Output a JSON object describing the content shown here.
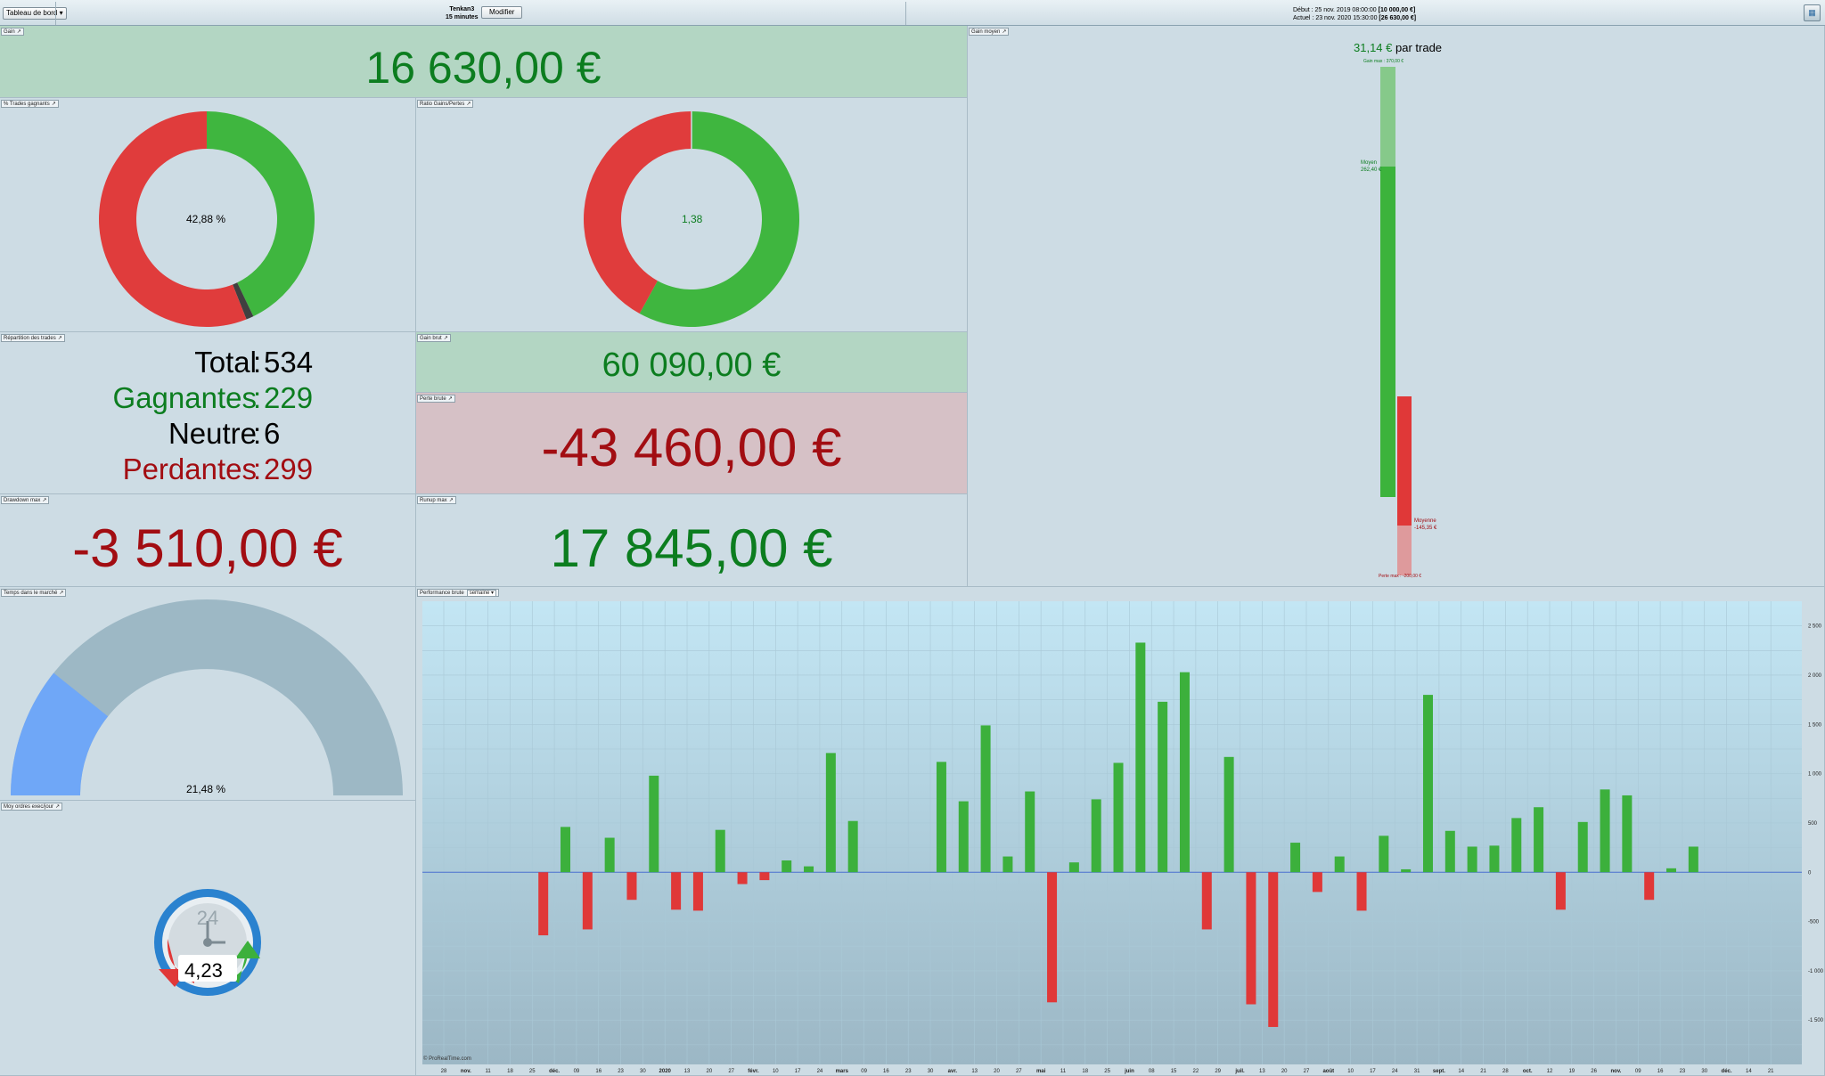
{
  "topbar": {
    "dashboard_dropdown": "Tableau de bord",
    "strategy_name": "Tenkan3",
    "timeframe": "15 minutes",
    "modify_button": "Modifier",
    "start_label": "Début :",
    "start_date": "25 nov. 2019 08:00:00",
    "start_capital": "[10 000,00 €]",
    "current_label": "Actuel :",
    "current_date": "23 nov. 2020 15:30:00",
    "current_capital": "[26 630,00 €]"
  },
  "gain": {
    "title": "Gain",
    "value": "16 630,00 €"
  },
  "win_pct": {
    "title": "% Trades gagnants",
    "label": "42,88 %",
    "win": 42.88,
    "neutral": 1.12,
    "loss": 56.0,
    "colors": {
      "win": "#3fb63f",
      "neutral": "#404040",
      "loss": "#e03c3c"
    }
  },
  "ratio": {
    "title": "Ratio Gains/Pertes",
    "label": "1,38",
    "win_fraction": 0.58
  },
  "avg_gain": {
    "title": "Gain moyen",
    "per_trade_value": "31,14 €",
    "per_trade_suffix": "par trade",
    "gain_max_label": "Gain max : 370,00 €",
    "avg_win_label": "Moyen",
    "avg_win_value": "262,40 €",
    "avg_loss_label": "Moyenne",
    "avg_loss_value": "-145,35 €",
    "loss_max_label": "Perte max : -200,00 €",
    "gain_max": 370.0,
    "avg_win": 262.4,
    "avg_loss": -145.35,
    "loss_max": -200.0
  },
  "repartition": {
    "title": "Répartition des trades",
    "rows": [
      {
        "label": "Total",
        "value": "534"
      },
      {
        "label": "Gagnantes",
        "value": "229"
      },
      {
        "label": "Neutre",
        "value": "6"
      },
      {
        "label": "Perdantes",
        "value": "299"
      }
    ],
    "separator": ":"
  },
  "gain_brut": {
    "title": "Gain brut",
    "value": "60 090,00 €"
  },
  "perte_brute": {
    "title": "Perte brute",
    "value": "-43 460,00 €"
  },
  "drawdown": {
    "title": "Drawdown max",
    "value": "-3 510,00 €"
  },
  "runup": {
    "title": "Runup max",
    "value": "17 845,00 €"
  },
  "market_time": {
    "title": "Temps dans le marché",
    "label": "21,48 %",
    "fraction": 0.2148
  },
  "orders": {
    "title": "Moy ordres exec/jour",
    "label": "4,23",
    "clock_number": "24"
  },
  "performance": {
    "title": "Performance brute",
    "period_select": "semaine",
    "credit": "© ProRealTime.com"
  },
  "chart_data": {
    "type": "bar",
    "title": "Performance brute",
    "ylim": [
      -1950,
      2750
    ],
    "yticks": [
      2500,
      2000,
      1500,
      1000,
      500,
      0,
      -500,
      -1000,
      -1500
    ],
    "ytick_labels": [
      "2 500",
      "2 000",
      "1 500",
      "1 000",
      "500",
      "0",
      "-500",
      "-1 000",
      "-1 500"
    ],
    "colors": {
      "positive": "#3cb03c",
      "negative": "#e03838",
      "zero_line": "#4a6fd0"
    },
    "x_labels": [
      {
        "t": "28",
        "b": false
      },
      {
        "t": "nov.",
        "b": true
      },
      {
        "t": "11",
        "b": false
      },
      {
        "t": "18",
        "b": false
      },
      {
        "t": "25",
        "b": false
      },
      {
        "t": "déc.",
        "b": true
      },
      {
        "t": "09",
        "b": false
      },
      {
        "t": "16",
        "b": false
      },
      {
        "t": "23",
        "b": false
      },
      {
        "t": "30",
        "b": false
      },
      {
        "t": "2020",
        "b": true
      },
      {
        "t": "13",
        "b": false
      },
      {
        "t": "20",
        "b": false
      },
      {
        "t": "27",
        "b": false
      },
      {
        "t": "févr.",
        "b": true
      },
      {
        "t": "10",
        "b": false
      },
      {
        "t": "17",
        "b": false
      },
      {
        "t": "24",
        "b": false
      },
      {
        "t": "mars",
        "b": true
      },
      {
        "t": "09",
        "b": false
      },
      {
        "t": "16",
        "b": false
      },
      {
        "t": "23",
        "b": false
      },
      {
        "t": "30",
        "b": false
      },
      {
        "t": "avr.",
        "b": true
      },
      {
        "t": "13",
        "b": false
      },
      {
        "t": "20",
        "b": false
      },
      {
        "t": "27",
        "b": false
      },
      {
        "t": "mai",
        "b": true
      },
      {
        "t": "11",
        "b": false
      },
      {
        "t": "18",
        "b": false
      },
      {
        "t": "25",
        "b": false
      },
      {
        "t": "juin",
        "b": true
      },
      {
        "t": "08",
        "b": false
      },
      {
        "t": "15",
        "b": false
      },
      {
        "t": "22",
        "b": false
      },
      {
        "t": "29",
        "b": false
      },
      {
        "t": "juil.",
        "b": true
      },
      {
        "t": "13",
        "b": false
      },
      {
        "t": "20",
        "b": false
      },
      {
        "t": "27",
        "b": false
      },
      {
        "t": "août",
        "b": true
      },
      {
        "t": "10",
        "b": false
      },
      {
        "t": "17",
        "b": false
      },
      {
        "t": "24",
        "b": false
      },
      {
        "t": "31",
        "b": false
      },
      {
        "t": "sept.",
        "b": true
      },
      {
        "t": "14",
        "b": false
      },
      {
        "t": "21",
        "b": false
      },
      {
        "t": "28",
        "b": false
      },
      {
        "t": "oct.",
        "b": true
      },
      {
        "t": "12",
        "b": false
      },
      {
        "t": "19",
        "b": false
      },
      {
        "t": "26",
        "b": false
      },
      {
        "t": "nov.",
        "b": true
      },
      {
        "t": "09",
        "b": false
      },
      {
        "t": "16",
        "b": false
      },
      {
        "t": "23",
        "b": false
      },
      {
        "t": "30",
        "b": false
      },
      {
        "t": "déc.",
        "b": true
      },
      {
        "t": "14",
        "b": false
      },
      {
        "t": "21",
        "b": false
      }
    ],
    "values": [
      0,
      0,
      0,
      0,
      -640,
      460,
      -580,
      350,
      -280,
      980,
      -380,
      -390,
      430,
      -120,
      -80,
      120,
      60,
      1210,
      520,
      0,
      0,
      0,
      1120,
      720,
      1490,
      160,
      820,
      -1320,
      100,
      740,
      1110,
      2330,
      1730,
      2030,
      -580,
      1170,
      -1340,
      -1570,
      300,
      -200,
      160,
      -390,
      370,
      30,
      1800,
      420,
      260,
      270,
      550,
      660,
      -380,
      510,
      840,
      780,
      -280,
      40,
      260,
      0,
      0,
      0,
      0
    ]
  }
}
